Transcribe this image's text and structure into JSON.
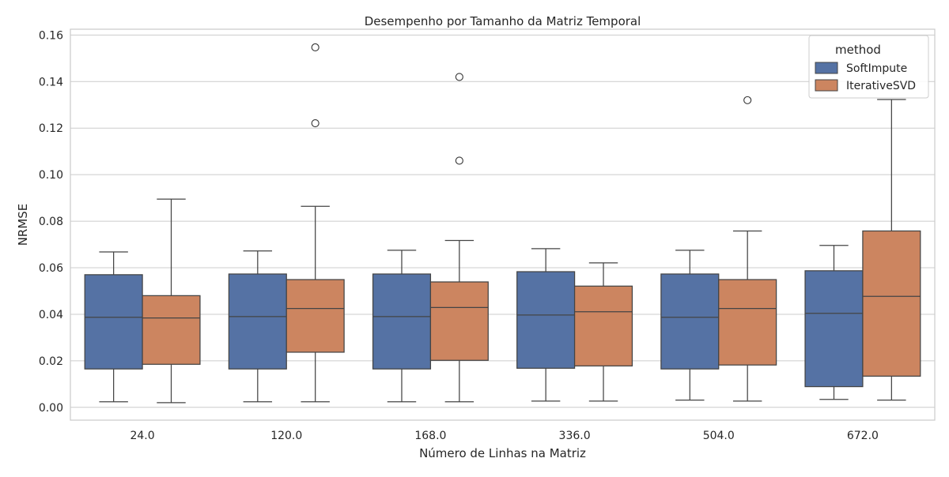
{
  "chart_data": {
    "type": "box",
    "title": "Desempenho por Tamanho da Matriz Temporal",
    "xlabel": "Número de Linhas na Matriz",
    "ylabel": "NRMSE",
    "ylim": [
      -0.0055,
      0.1625
    ],
    "yticks": [
      "0.00",
      "0.02",
      "0.04",
      "0.06",
      "0.08",
      "0.10",
      "0.12",
      "0.14",
      "0.16"
    ],
    "categories": [
      "24.0",
      "120.0",
      "168.0",
      "336.0",
      "504.0",
      "672.0"
    ],
    "grid": true,
    "legend": {
      "title": "method",
      "position": "top-right"
    },
    "series": [
      {
        "name": "SoftImpute",
        "color": "#5572a4",
        "boxes": [
          {
            "whisker_low": 0.0024,
            "q1": 0.0165,
            "median": 0.0387,
            "q3": 0.057,
            "whisker_high": 0.0668,
            "outliers": []
          },
          {
            "whisker_low": 0.0024,
            "q1": 0.0165,
            "median": 0.039,
            "q3": 0.0573,
            "whisker_high": 0.0672,
            "outliers": []
          },
          {
            "whisker_low": 0.0024,
            "q1": 0.0165,
            "median": 0.039,
            "q3": 0.0573,
            "whisker_high": 0.0675,
            "outliers": []
          },
          {
            "whisker_low": 0.0027,
            "q1": 0.0168,
            "median": 0.0397,
            "q3": 0.0583,
            "whisker_high": 0.0682,
            "outliers": []
          },
          {
            "whisker_low": 0.0031,
            "q1": 0.0165,
            "median": 0.0387,
            "q3": 0.0573,
            "whisker_high": 0.0675,
            "outliers": []
          },
          {
            "whisker_low": 0.0034,
            "q1": 0.0089,
            "median": 0.0404,
            "q3": 0.0587,
            "whisker_high": 0.0696,
            "outliers": []
          }
        ]
      },
      {
        "name": "IterativeSVD",
        "color": "#cc8560",
        "boxes": [
          {
            "whisker_low": 0.002,
            "q1": 0.0185,
            "median": 0.0384,
            "q3": 0.048,
            "whisker_high": 0.0895,
            "outliers": []
          },
          {
            "whisker_low": 0.0024,
            "q1": 0.0237,
            "median": 0.0425,
            "q3": 0.0549,
            "whisker_high": 0.0864,
            "outliers": [
              0.1221,
              0.1547
            ]
          },
          {
            "whisker_low": 0.0024,
            "q1": 0.0202,
            "median": 0.0429,
            "q3": 0.0539,
            "whisker_high": 0.0717,
            "outliers": [
              0.106,
              0.142
            ]
          },
          {
            "whisker_low": 0.0027,
            "q1": 0.0178,
            "median": 0.0411,
            "q3": 0.0521,
            "whisker_high": 0.0621,
            "outliers": []
          },
          {
            "whisker_low": 0.0027,
            "q1": 0.0182,
            "median": 0.0425,
            "q3": 0.0549,
            "whisker_high": 0.0758,
            "outliers": [
              0.132
            ]
          },
          {
            "whisker_low": 0.0031,
            "q1": 0.0134,
            "median": 0.0477,
            "q3": 0.0758,
            "whisker_high": 0.1323,
            "outliers": []
          }
        ]
      }
    ]
  }
}
